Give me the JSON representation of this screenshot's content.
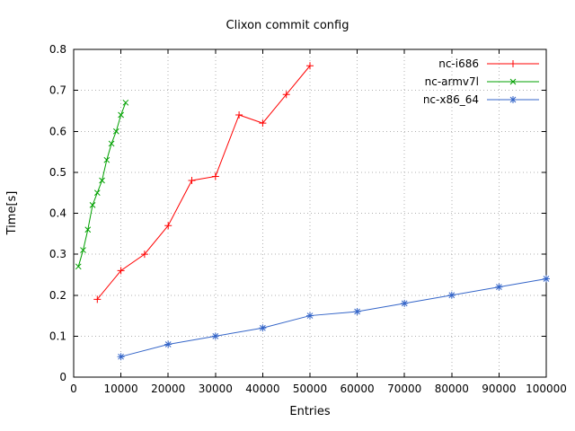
{
  "chart_data": {
    "type": "line",
    "title": "Clixon commit config",
    "xlabel": "Entries",
    "ylabel": "Time[s]",
    "xlim": [
      0,
      100000
    ],
    "ylim": [
      0,
      0.8
    ],
    "x_ticks": [
      0,
      10000,
      20000,
      30000,
      40000,
      50000,
      60000,
      70000,
      80000,
      90000,
      100000
    ],
    "y_ticks": [
      0,
      0.1,
      0.2,
      0.3,
      0.4,
      0.5,
      0.6,
      0.7,
      0.8
    ],
    "grid": true,
    "legend_position": "top-right-inside",
    "background_color": "#ffffff",
    "grid_color": "#b0b0b0",
    "border_color": "#000000",
    "series": [
      {
        "name": "nc-i686",
        "color": "#ff0000",
        "marker": "plus",
        "x": [
          5000,
          10000,
          15000,
          20000,
          25000,
          30000,
          35000,
          40000,
          45000,
          50000
        ],
        "y": [
          0.19,
          0.26,
          0.3,
          0.37,
          0.48,
          0.49,
          0.64,
          0.62,
          0.69,
          0.76
        ]
      },
      {
        "name": "nc-armv7l",
        "color": "#00a000",
        "marker": "cross",
        "x": [
          1000,
          2000,
          3000,
          4000,
          5000,
          6000,
          7000,
          8000,
          9000,
          10000,
          11000
        ],
        "y": [
          0.27,
          0.31,
          0.36,
          0.42,
          0.45,
          0.48,
          0.53,
          0.57,
          0.6,
          0.64,
          0.67
        ]
      },
      {
        "name": "nc-x86_64",
        "color": "#3465c8",
        "marker": "star",
        "x": [
          10000,
          20000,
          30000,
          40000,
          50000,
          60000,
          70000,
          80000,
          90000,
          100000
        ],
        "y": [
          0.05,
          0.08,
          0.1,
          0.12,
          0.15,
          0.16,
          0.18,
          0.2,
          0.22,
          0.24
        ]
      }
    ]
  }
}
